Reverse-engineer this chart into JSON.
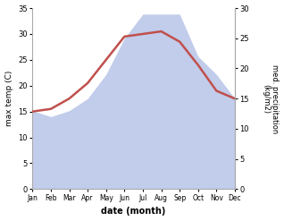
{
  "months": [
    "Jan",
    "Feb",
    "Mar",
    "Apr",
    "May",
    "Jun",
    "Jul",
    "Aug",
    "Sep",
    "Oct",
    "Nov",
    "Dec"
  ],
  "temp": [
    15.0,
    15.5,
    17.5,
    20.5,
    25.0,
    29.5,
    30.0,
    30.5,
    28.5,
    24.0,
    19.0,
    17.5
  ],
  "precip": [
    13,
    12,
    13,
    15,
    19,
    25,
    29,
    29,
    29,
    22,
    19,
    15
  ],
  "temp_color": "#c0504d",
  "precip_color": "#b8c4e8",
  "left_label": "max temp (C)",
  "right_label": "med. precipitation\n(kg/m2)",
  "xlabel": "date (month)",
  "ylim_left": [
    0,
    35
  ],
  "ylim_right": [
    0,
    30
  ],
  "yticks_left": [
    0,
    5,
    10,
    15,
    20,
    25,
    30,
    35
  ],
  "yticks_right": [
    0,
    5,
    10,
    15,
    20,
    25,
    30
  ],
  "bg_color": "#ffffff",
  "fig_width": 3.18,
  "fig_height": 2.47,
  "dpi": 100
}
